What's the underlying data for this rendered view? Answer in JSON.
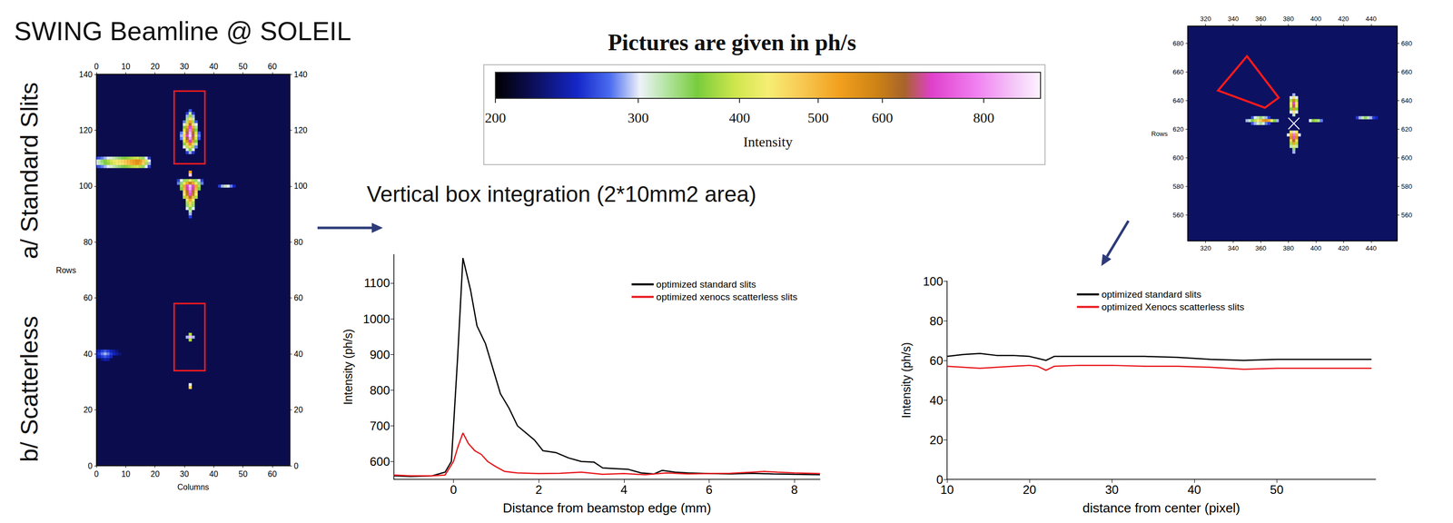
{
  "title": "SWING Beamline @ SOLEIL",
  "panel_labels": [
    "a/ Standard Slits",
    "b/ Scatterless"
  ],
  "annotation": "Vertical box integration (2*10mm2 area)",
  "colorbar": {
    "title": "Pictures are given in ph/s",
    "label": "Intensity",
    "range": [
      200,
      940
    ],
    "ticks": [
      200,
      300,
      400,
      500,
      600,
      800
    ],
    "log": true
  },
  "chart_data": [
    {
      "type": "heatmap",
      "xlabel": "Columns",
      "ylabel": "Rows",
      "xlim": [
        0,
        66
      ],
      "ylim": [
        0,
        140
      ],
      "xticks": [
        0,
        10,
        20,
        30,
        40,
        50,
        60
      ],
      "yticks": [
        0,
        20,
        40,
        60,
        80,
        100,
        120,
        140
      ],
      "background": 220,
      "cell_size": 1,
      "boxes": [
        [
          26.5,
          108,
          37,
          134
        ],
        [
          26.5,
          34,
          37,
          58
        ]
      ],
      "cell_rows": [
        [
          127,
          32,
          [
            270
          ]
        ],
        [
          126,
          31,
          [
            260,
            320,
            260
          ]
        ],
        [
          125,
          31,
          [
            290,
            370,
            290
          ]
        ],
        [
          124,
          31,
          [
            330,
            440,
            320
          ]
        ],
        [
          123,
          30,
          [
            280,
            390,
            520,
            380,
            270
          ]
        ],
        [
          122,
          30,
          [
            310,
            460,
            620,
            450,
            300
          ]
        ],
        [
          121,
          30,
          [
            350,
            530,
            700,
            520,
            330
          ]
        ],
        [
          120,
          30,
          [
            400,
            600,
            780,
            580,
            360
          ]
        ],
        [
          119,
          29,
          [
            280,
            430,
            650,
            850,
            620,
            400,
            270
          ]
        ],
        [
          118,
          29,
          [
            290,
            460,
            700,
            900,
            660,
            430,
            280
          ]
        ],
        [
          117,
          29,
          [
            280,
            440,
            640,
            820,
            600,
            400,
            270
          ]
        ],
        [
          116,
          30,
          [
            400,
            560,
            680,
            540,
            360
          ]
        ],
        [
          115,
          30,
          [
            350,
            470,
            560,
            460,
            320
          ]
        ],
        [
          114,
          30,
          [
            300,
            390,
            460,
            380,
            280
          ]
        ],
        [
          113,
          31,
          [
            310,
            360,
            300
          ]
        ],
        [
          112,
          31,
          [
            260,
            290,
            260
          ]
        ],
        [
          110,
          0,
          [
            260,
            270,
            280,
            290,
            300,
            310,
            320,
            330,
            340,
            350,
            360,
            370,
            380,
            390,
            400,
            380,
            340,
            300,
            260
          ]
        ],
        [
          109,
          0,
          [
            300,
            320,
            340,
            360,
            380,
            400,
            420,
            440,
            450,
            460,
            480,
            500,
            520,
            540,
            560,
            540,
            480,
            400,
            300
          ]
        ],
        [
          108,
          0,
          [
            300,
            320,
            330,
            350,
            370,
            390,
            410,
            430,
            440,
            450,
            470,
            490,
            510,
            530,
            550,
            520,
            460,
            380,
            290
          ]
        ],
        [
          107,
          0,
          [
            260,
            270,
            280,
            290,
            300,
            310,
            320,
            330,
            340,
            350,
            360,
            370,
            380,
            390,
            400,
            380,
            340,
            300,
            260
          ]
        ],
        [
          105,
          32,
          [
            520
          ]
        ],
        [
          104,
          32,
          [
            880
          ]
        ],
        [
          102,
          28,
          [
            260,
            300,
            340,
            380,
            420,
            380,
            340,
            300,
            260
          ]
        ],
        [
          101,
          28,
          [
            280,
            340,
            420,
            520,
            600,
            520,
            420,
            340,
            280
          ]
        ],
        [
          100,
          29,
          [
            380,
            520,
            700,
            860,
            700,
            520,
            380
          ]
        ],
        [
          100,
          42,
          [
            260,
            290,
            320,
            300,
            280,
            250
          ]
        ],
        [
          99,
          29,
          [
            360,
            500,
            680,
            820,
            680,
            500,
            360
          ]
        ],
        [
          98,
          30,
          [
            460,
            620,
            760,
            620,
            460
          ]
        ],
        [
          97,
          30,
          [
            440,
            600,
            720,
            600,
            440
          ]
        ],
        [
          96,
          30,
          [
            380,
            500,
            620,
            500,
            380
          ]
        ],
        [
          95,
          31,
          [
            420,
            520,
            420
          ]
        ],
        [
          94,
          31,
          [
            380,
            460,
            380
          ]
        ],
        [
          93,
          31,
          [
            340,
            410,
            340
          ]
        ],
        [
          92,
          31,
          [
            300,
            360,
            300
          ]
        ],
        [
          91,
          32,
          [
            320
          ]
        ],
        [
          90,
          32,
          [
            290
          ]
        ],
        [
          89,
          32,
          [
            260
          ]
        ],
        [
          47,
          32,
          [
            380
          ]
        ],
        [
          46,
          31,
          [
            290,
            860,
            290
          ]
        ],
        [
          45,
          32,
          [
            380
          ]
        ],
        [
          41,
          0,
          [
            240,
            250,
            260,
            270,
            260,
            250,
            240,
            230
          ]
        ],
        [
          40,
          0,
          [
            250,
            260,
            280,
            290,
            280,
            260,
            250,
            240,
            230
          ]
        ],
        [
          39,
          0,
          [
            240,
            250,
            260,
            270,
            260,
            250
          ]
        ],
        [
          38,
          2,
          [
            235,
            245,
            240
          ]
        ],
        [
          29,
          32,
          [
            300
          ]
        ],
        [
          28,
          32,
          [
            460
          ]
        ]
      ]
    },
    {
      "type": "line",
      "xlabel": "Distance from beamstop edge (mm)",
      "ylabel": "Intensity (ph/s)",
      "xlim": [
        -1.4,
        8.6
      ],
      "ylim": [
        550,
        1180
      ],
      "xticks": [
        0,
        2,
        4,
        6,
        8
      ],
      "yticks": [
        600,
        700,
        800,
        900,
        1000,
        1100
      ],
      "legend": "upper right",
      "series": [
        {
          "name": "optimized standard slits",
          "color": "#000000",
          "x": [
            -1.4,
            -1.0,
            -0.5,
            -0.2,
            -0.05,
            0.1,
            0.22,
            0.4,
            0.55,
            0.75,
            0.9,
            1.1,
            1.3,
            1.5,
            1.7,
            1.9,
            2.1,
            2.4,
            2.7,
            3.0,
            3.3,
            3.5,
            3.8,
            4.1,
            4.4,
            4.7,
            4.9,
            5.2,
            5.5,
            6.0,
            6.5,
            7.0,
            7.5,
            8.0,
            8.6
          ],
          "values": [
            560,
            558,
            560,
            570,
            600,
            900,
            1170,
            1080,
            980,
            930,
            870,
            790,
            750,
            700,
            680,
            660,
            630,
            625,
            610,
            600,
            598,
            582,
            580,
            578,
            568,
            565,
            575,
            570,
            568,
            566,
            565,
            567,
            565,
            564,
            563
          ]
        },
        {
          "name": "optimized xenocs scatterless slits",
          "color": "#e8151b",
          "x": [
            -1.4,
            -1.0,
            -0.5,
            -0.2,
            0.0,
            0.1,
            0.22,
            0.35,
            0.5,
            0.65,
            0.8,
            1.0,
            1.2,
            1.5,
            2.0,
            2.5,
            3.0,
            3.5,
            4.0,
            4.5,
            5.0,
            5.5,
            6.0,
            6.5,
            7.0,
            7.3,
            7.6,
            8.0,
            8.6
          ],
          "values": [
            562,
            560,
            560,
            562,
            600,
            640,
            680,
            650,
            630,
            620,
            600,
            585,
            572,
            568,
            566,
            567,
            570,
            564,
            566,
            563,
            568,
            565,
            566,
            567,
            570,
            572,
            570,
            568,
            566
          ]
        }
      ]
    },
    {
      "type": "heatmap",
      "ylabel": "Rows",
      "xlim": [
        307,
        459
      ],
      "ylim": [
        542,
        692
      ],
      "xticks": [
        320,
        340,
        360,
        380,
        400,
        420,
        440
      ],
      "yticks": [
        560,
        580,
        600,
        620,
        640,
        660,
        680
      ],
      "background": 225,
      "cell_size": 2,
      "center": [
        384,
        624
      ],
      "region": [
        [
          329,
          647
        ],
        [
          350,
          671
        ],
        [
          373,
          642
        ],
        [
          363,
          635
        ]
      ],
      "cell_rows": [
        [
          644,
          384,
          [
            290
          ]
        ],
        [
          642,
          382,
          [
            300,
            440,
            300
          ]
        ],
        [
          640,
          382,
          [
            380,
            580,
            380
          ]
        ],
        [
          638,
          382,
          [
            440,
            700,
            440
          ]
        ],
        [
          636,
          382,
          [
            420,
            660,
            420
          ]
        ],
        [
          634,
          382,
          [
            360,
            540,
            360
          ]
        ],
        [
          632,
          382,
          [
            300,
            430,
            300
          ]
        ],
        [
          630,
          384,
          [
            320
          ]
        ],
        [
          628,
          354,
          [
            270,
            300,
            320,
            340,
            320,
            290,
            260
          ]
        ],
        [
          628,
          430,
          [
            260,
            290,
            320,
            340,
            320,
            290,
            260,
            250
          ]
        ],
        [
          626,
          350,
          [
            290,
            320,
            350,
            390,
            430,
            480,
            540,
            560,
            520,
            440,
            360,
            290
          ]
        ],
        [
          626,
          396,
          [
            300,
            360,
            380,
            330,
            280
          ]
        ],
        [
          624,
          354,
          [
            270,
            290,
            310,
            330,
            310,
            280,
            260
          ]
        ],
        [
          618,
          382,
          [
            420,
            880,
            420
          ]
        ],
        [
          616,
          380,
          [
            300,
            520,
            760,
            520,
            300
          ]
        ],
        [
          614,
          382,
          [
            560,
            720,
            560
          ]
        ],
        [
          612,
          382,
          [
            460,
            620,
            460
          ]
        ],
        [
          610,
          382,
          [
            380,
            520,
            380
          ]
        ],
        [
          608,
          382,
          [
            320,
            420,
            320
          ]
        ],
        [
          606,
          384,
          [
            340
          ]
        ],
        [
          604,
          384,
          [
            290
          ]
        ]
      ]
    },
    {
      "type": "line",
      "xlabel": "distance from center (pixel)",
      "ylabel": "Intensity (ph/s)",
      "xlim": [
        10,
        62
      ],
      "ylim": [
        0,
        100
      ],
      "xticks": [
        10,
        20,
        30,
        40,
        50
      ],
      "yticks": [
        0,
        20,
        40,
        60,
        80,
        100
      ],
      "legend": "top",
      "series": [
        {
          "name": "optimized standard slits",
          "color": "#000000",
          "x": [
            10,
            12,
            14,
            16,
            18,
            20,
            21,
            22,
            23,
            26,
            30,
            34,
            38,
            42,
            46,
            50,
            54,
            58,
            61.5
          ],
          "values": [
            62,
            63,
            63.5,
            62.5,
            62.5,
            62,
            61,
            60,
            62,
            62,
            62,
            62,
            61.5,
            60.5,
            60,
            60.5,
            60.5,
            60.5,
            60.5
          ]
        },
        {
          "name": "optimized Xenocs scatterless slits",
          "color": "#e8151b",
          "x": [
            10,
            12,
            14,
            16,
            18,
            20,
            21,
            22,
            23,
            26,
            30,
            34,
            38,
            42,
            46,
            50,
            54,
            58,
            61.5
          ],
          "values": [
            57,
            56.5,
            56,
            56.5,
            57,
            57.5,
            57,
            55,
            57,
            57.5,
            57.5,
            57,
            57,
            56.5,
            55.5,
            56,
            56,
            56,
            56
          ]
        }
      ]
    }
  ]
}
